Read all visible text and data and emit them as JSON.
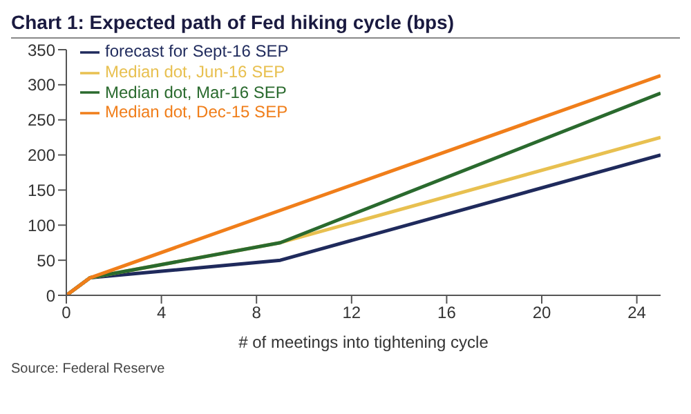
{
  "chart_data": {
    "type": "line",
    "title": "Chart 1: Expected path of Fed hiking cycle (bps)",
    "xlabel": "# of meetings into tightening cycle",
    "annotations": [
      "Source: Federal Reserve"
    ],
    "x": [
      0,
      1,
      9,
      25
    ],
    "series": [
      {
        "name": "forecast for Sept-16 SEP",
        "color": "#1f2a5c",
        "values": [
          0,
          25,
          50,
          200
        ]
      },
      {
        "name": "Median dot, Jun-16 SEP",
        "color": "#e8c050",
        "values": [
          0,
          25,
          75,
          225
        ]
      },
      {
        "name": "Median dot, Mar-16 SEP",
        "color": "#2a6a2e",
        "values": [
          0,
          25,
          75,
          288
        ]
      },
      {
        "name": "Median dot, Dec-15 SEP",
        "color": "#f07e1a",
        "x": [
          0,
          1,
          25
        ],
        "values": [
          0,
          25,
          313
        ]
      }
    ],
    "xlim": [
      0,
      25
    ],
    "xticks": [
      0,
      4,
      8,
      12,
      16,
      20,
      24
    ],
    "ylim": [
      0,
      350
    ],
    "yticks": [
      0,
      50,
      100,
      150,
      200,
      250,
      300,
      350
    ],
    "grid": false,
    "legend": "top left",
    "marker": "none",
    "line_style": "solid"
  }
}
